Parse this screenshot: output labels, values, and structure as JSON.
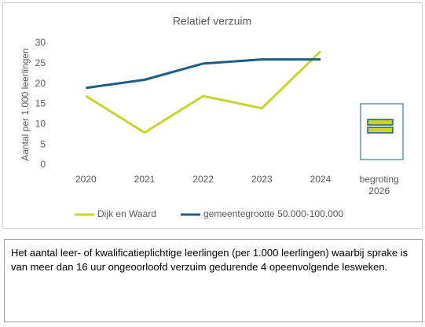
{
  "chart_data": {
    "type": "line",
    "title": "Relatief verzuim",
    "y_label": "Aantal per 1.000 leerlingen",
    "categories": [
      "2020",
      "2021",
      "2022",
      "2023",
      "2024",
      "begroting 2026"
    ],
    "series": [
      {
        "name": "Dijk en Waard",
        "color": "#c8d42f",
        "values": [
          17,
          8,
          17,
          14,
          28,
          null
        ]
      },
      {
        "name": "gemeentegrootte 50.000-100.000",
        "color": "#1b5e8a",
        "values": [
          19,
          21,
          25,
          26,
          26,
          null
        ]
      }
    ],
    "ylim": [
      0,
      30
    ],
    "yticks": [
      0,
      5,
      10,
      15,
      20,
      25,
      30
    ],
    "grid": false
  },
  "note": "Het aantal leer- of kwalificatieplichtige leerlingen (per 1.000 leerlingen) waarbij sprake is van meer dan 16 uur ongeoorloofd verzuim gedurende 4 opeenvolgende lesweken."
}
